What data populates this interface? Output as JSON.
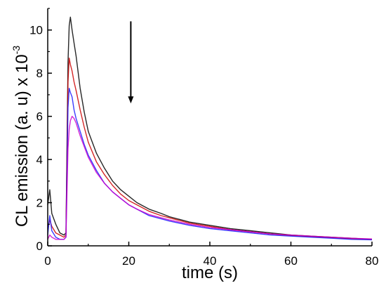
{
  "chart_data": {
    "type": "line",
    "xlabel": "time (s)",
    "ylabel_main": "CL emission (a. u) x 10",
    "ylabel_exponent": "-3",
    "xlim": [
      0,
      80
    ],
    "ylim": [
      0,
      11
    ],
    "x_ticks": [
      0,
      20,
      40,
      60,
      80
    ],
    "y_ticks": [
      0,
      2,
      4,
      6,
      8,
      10
    ],
    "grid": false,
    "arrow": {
      "x": 20.5,
      "y_from": 10.4,
      "y_to": 6.6
    },
    "series": [
      {
        "color": "#000000",
        "x": [
          0,
          0.5,
          1,
          2,
          3,
          4,
          4.5,
          5,
          5.3,
          5.6,
          6,
          6.5,
          7,
          8,
          9,
          10,
          12,
          14,
          16,
          18,
          20,
          22,
          25,
          28,
          30,
          35,
          40,
          45,
          50,
          55,
          60,
          65,
          70,
          75,
          80
        ],
        "y": [
          1.9,
          2.6,
          1.5,
          1.0,
          0.6,
          0.5,
          0.6,
          8.5,
          10.2,
          10.6,
          10.0,
          9.4,
          8.8,
          7.3,
          6.2,
          5.3,
          4.3,
          3.6,
          3.0,
          2.6,
          2.3,
          2.0,
          1.7,
          1.5,
          1.35,
          1.1,
          0.95,
          0.8,
          0.7,
          0.6,
          0.5,
          0.45,
          0.4,
          0.35,
          0.3
        ]
      },
      {
        "color": "#cc0000",
        "x": [
          0,
          0.5,
          1,
          2,
          3,
          4,
          4.5,
          5,
          5.3,
          5.6,
          6,
          6.5,
          7,
          8,
          9,
          10,
          12,
          14,
          16,
          18,
          20,
          22,
          25,
          28,
          30,
          35,
          40,
          45,
          50,
          55,
          60,
          65,
          70,
          75,
          80
        ],
        "y": [
          0.8,
          1.2,
          0.9,
          0.6,
          0.5,
          0.4,
          0.5,
          7.6,
          8.7,
          8.4,
          8.1,
          7.6,
          7.2,
          6.3,
          5.5,
          4.8,
          3.9,
          3.3,
          2.8,
          2.4,
          2.1,
          1.9,
          1.6,
          1.4,
          1.3,
          1.05,
          0.9,
          0.75,
          0.65,
          0.55,
          0.48,
          0.42,
          0.38,
          0.33,
          0.3
        ]
      },
      {
        "color": "#1a1aff",
        "x": [
          0,
          0.5,
          1,
          2,
          3,
          4,
          4.5,
          5,
          5.3,
          5.6,
          6,
          6.5,
          7,
          8,
          9,
          10,
          12,
          14,
          16,
          18,
          20,
          22,
          25,
          28,
          30,
          35,
          40,
          45,
          50,
          55,
          60,
          65,
          70,
          75,
          80
        ],
        "y": [
          0.5,
          1.4,
          0.7,
          0.4,
          0.3,
          0.3,
          0.4,
          6.4,
          7.3,
          7.1,
          6.9,
          6.3,
          5.9,
          5.3,
          4.7,
          4.2,
          3.5,
          2.9,
          2.5,
          2.2,
          1.9,
          1.7,
          1.4,
          1.25,
          1.15,
          0.95,
          0.8,
          0.7,
          0.6,
          0.5,
          0.45,
          0.4,
          0.35,
          0.3,
          0.28
        ]
      },
      {
        "color": "#cc00cc",
        "x": [
          0,
          0.5,
          1,
          2,
          3,
          4,
          4.5,
          5,
          5.3,
          5.6,
          6,
          6.5,
          7,
          8,
          9,
          10,
          12,
          14,
          16,
          18,
          20,
          22,
          25,
          28,
          30,
          35,
          40,
          45,
          50,
          55,
          60,
          65,
          70,
          75,
          80
        ],
        "y": [
          0.3,
          0.5,
          0.4,
          0.3,
          0.3,
          0.3,
          0.4,
          4.5,
          5.4,
          5.8,
          6.0,
          5.9,
          5.7,
          5.1,
          4.6,
          4.1,
          3.4,
          2.9,
          2.5,
          2.2,
          1.9,
          1.7,
          1.45,
          1.3,
          1.2,
          1.0,
          0.85,
          0.75,
          0.65,
          0.55,
          0.5,
          0.45,
          0.4,
          0.35,
          0.32
        ]
      }
    ]
  }
}
